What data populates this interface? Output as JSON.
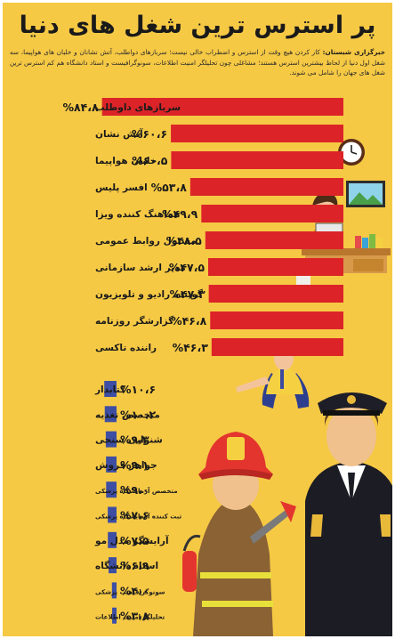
{
  "title": "پر استرس ترین شغل های دنیا",
  "intro": {
    "source": "خبرگزاری شبستان:",
    "text": " کار کردن هیچ وقت از استرس و اضطراب خالی نیست؛ سربازهای دواطلب، آتش نشانان و خلبان های هواپیما، سه شغل اول دنیا از لحاظ بیشترین استرس هستند؛ مشاغلی چون تحلیلگر امنیت اطلاعات، سونوگرافیست و استاد دانشگاه هم کم استرس ترین شغل های جهان را شامل می شوند."
  },
  "colors": {
    "background": "#f6c945",
    "high_bar": "#dc2428",
    "low_bar": "#3d4ea3"
  },
  "chart_data": [
    {
      "type": "bar",
      "orientation": "horizontal",
      "title": "",
      "categories": [
        "سربازهای داوطلب",
        "آتش نشان",
        "خلبان هواپیما",
        "افسر پلیس",
        "هماهنگ کننده ویزا",
        "مسئول روابط عمومی",
        "مدیر ارشد سازمانی",
        "گوینده رادیو و تلویزیون",
        "گزارشگر روزنامه",
        "راننده تاکسی"
      ],
      "values": [
        84.8,
        60.6,
        60.5,
        53.8,
        49.9,
        48.5,
        47.5,
        47.3,
        46.8,
        46.3
      ],
      "value_labels": [
        "%۸۴،۸",
        "%۶۰،۶",
        "%۶۰،۵",
        "%۵۳،۸",
        "%۴۹،۹",
        "%۴۸،۵",
        "%۴۷،۵",
        "%۴۷،۳",
        "%۴۶،۸",
        "%۴۶،۳"
      ],
      "color": "#dc2428"
    },
    {
      "type": "bar",
      "orientation": "horizontal",
      "title": "",
      "categories": [
        "کتابدار",
        "متخصص تغذیه",
        "شنوایی سنجی",
        "جواهر فروش",
        "متخصص آزمایشگاه پزشکی",
        "ثبت کننده آزمایشگاه پزشکی",
        "آرایشگر مدل مو",
        "استاد دانشگاه",
        "سونوگرافیست پزشکی",
        "تحلیلگر امنیت اطلاعات"
      ],
      "values": [
        10.6,
        10.2,
        9.3,
        9.1,
        9.0,
        7.6,
        7.5,
        6.9,
        4.0,
        3.8
      ],
      "value_labels": [
        "%۱۰،۶",
        "%۱۰،۲",
        "%۹،۳",
        "%۹،۱",
        "%۹،۰",
        "%۷،۶",
        "%۷،۵",
        "%۶،۹",
        "%۴،۰",
        "%۳،۸"
      ],
      "color": "#3d4ea3"
    }
  ]
}
